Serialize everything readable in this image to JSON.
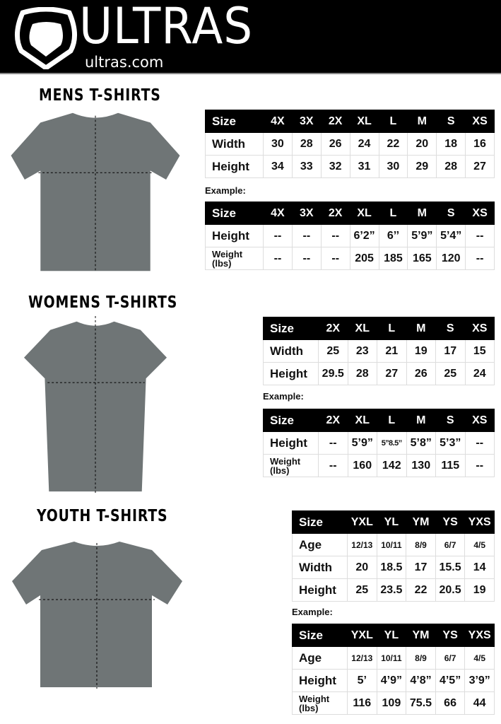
{
  "header": {
    "brand": "ULTRAS",
    "site": "ultras.com"
  },
  "colors": {
    "header_bg": "#000000",
    "shirt": "#6f7576",
    "text": "#111111"
  },
  "sections": [
    {
      "id": "mens",
      "title": "MENS T-SHIRTS",
      "example_label": "Example:",
      "sizes": [
        "4X",
        "3X",
        "2X",
        "XL",
        "L",
        "M",
        "S",
        "XS"
      ],
      "measure_rows": [
        {
          "label": "Width",
          "values": [
            "30",
            "28",
            "26",
            "24",
            "22",
            "20",
            "18",
            "16"
          ]
        },
        {
          "label": "Height",
          "values": [
            "34",
            "33",
            "32",
            "31",
            "30",
            "29",
            "28",
            "27"
          ]
        }
      ],
      "example_rows": [
        {
          "label": "Height",
          "values": [
            "--",
            "--",
            "--",
            "6’2”",
            "6’’",
            "5’9”",
            "5’4”",
            "--"
          ]
        },
        {
          "label": "Weight (lbs)",
          "values": [
            "--",
            "--",
            "--",
            "205",
            "185",
            "165",
            "120",
            "--"
          ]
        }
      ]
    },
    {
      "id": "womens",
      "title": "WOMENS T-SHIRTS",
      "example_label": "Example:",
      "sizes": [
        "2X",
        "XL",
        "L",
        "M",
        "S",
        "XS"
      ],
      "measure_rows": [
        {
          "label": "Width",
          "values": [
            "25",
            "23",
            "21",
            "19",
            "17",
            "15"
          ]
        },
        {
          "label": "Height",
          "values": [
            "29.5",
            "28",
            "27",
            "26",
            "25",
            "24"
          ]
        }
      ],
      "example_rows": [
        {
          "label": "Height",
          "values": [
            "--",
            "5’9”",
            "5’’8.5”",
            "5’8”",
            "5’3”",
            "--"
          ]
        },
        {
          "label": "Weight (lbs)",
          "values": [
            "--",
            "160",
            "142",
            "130",
            "115",
            "--"
          ]
        }
      ]
    },
    {
      "id": "youth",
      "title": "YOUTH T-SHIRTS",
      "example_label": "Example:",
      "sizes": [
        "YXL",
        "YL",
        "YM",
        "YS",
        "YXS"
      ],
      "measure_rows": [
        {
          "label": "Age",
          "values": [
            "12/13",
            "10/11",
            "8/9",
            "6/7",
            "4/5"
          ]
        },
        {
          "label": "Width",
          "values": [
            "20",
            "18.5",
            "17",
            "15.5",
            "14"
          ]
        },
        {
          "label": "Height",
          "values": [
            "25",
            "23.5",
            "22",
            "20.5",
            "19"
          ]
        }
      ],
      "example_rows": [
        {
          "label": "Age",
          "values": [
            "12/13",
            "10/11",
            "8/9",
            "6/7",
            "4/5"
          ]
        },
        {
          "label": "Height",
          "values": [
            "5’",
            "4’9”",
            "4’8”",
            "4’5”",
            "3’9”"
          ]
        },
        {
          "label": "Weight (lbs)",
          "values": [
            "116",
            "109",
            "75.5",
            "66",
            "44"
          ]
        }
      ]
    }
  ],
  "size_header_label": "Size"
}
